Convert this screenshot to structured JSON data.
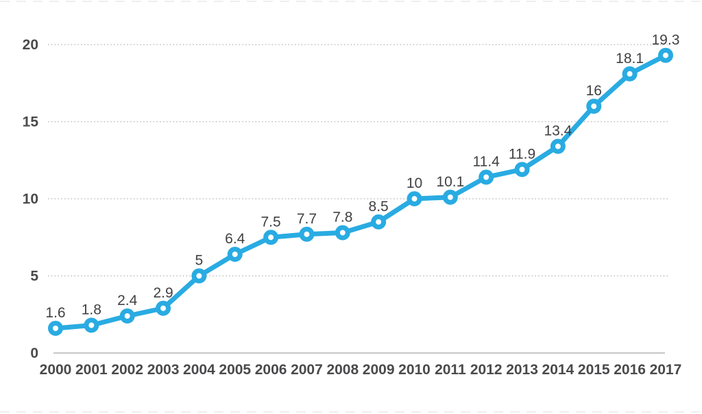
{
  "chart_data": {
    "type": "line",
    "title": "",
    "xlabel": "",
    "ylabel": "",
    "categories": [
      "2000",
      "2001",
      "2002",
      "2003",
      "2004",
      "2005",
      "2006",
      "2007",
      "2008",
      "2009",
      "2010",
      "2011",
      "2012",
      "2013",
      "2014",
      "2015",
      "2016",
      "2017"
    ],
    "series": [
      {
        "name": "value",
        "values": [
          1.6,
          1.8,
          2.4,
          2.9,
          5,
          6.4,
          7.5,
          7.7,
          7.8,
          8.5,
          10,
          10.1,
          11.4,
          11.9,
          13.4,
          16,
          18.1,
          19.3
        ]
      }
    ],
    "data_labels": [
      "1.6",
      "1.8",
      "2.4",
      "2.9",
      "5",
      "6.4",
      "7.5",
      "7.7",
      "7.8",
      "8.5",
      "10",
      "10.1",
      "11.4",
      "11.9",
      "13.4",
      "16",
      "18.1",
      "19.3"
    ],
    "ylim": [
      0,
      20
    ],
    "yticks": [
      0,
      5,
      10,
      15,
      20
    ],
    "grid": "horizontal-dotted",
    "legend": "none",
    "colors": {
      "line": "#29ABE2",
      "marker_ring": "#29ABE2",
      "marker_fill": "#FFFFFF",
      "data_label": "#414042",
      "tick_label": "#4A4A4C",
      "gridline": "#B5B5B5",
      "axis_line": "#C6C7C9",
      "edge_gridline": "#E9E9E9",
      "background": "#FFFFFF"
    }
  }
}
